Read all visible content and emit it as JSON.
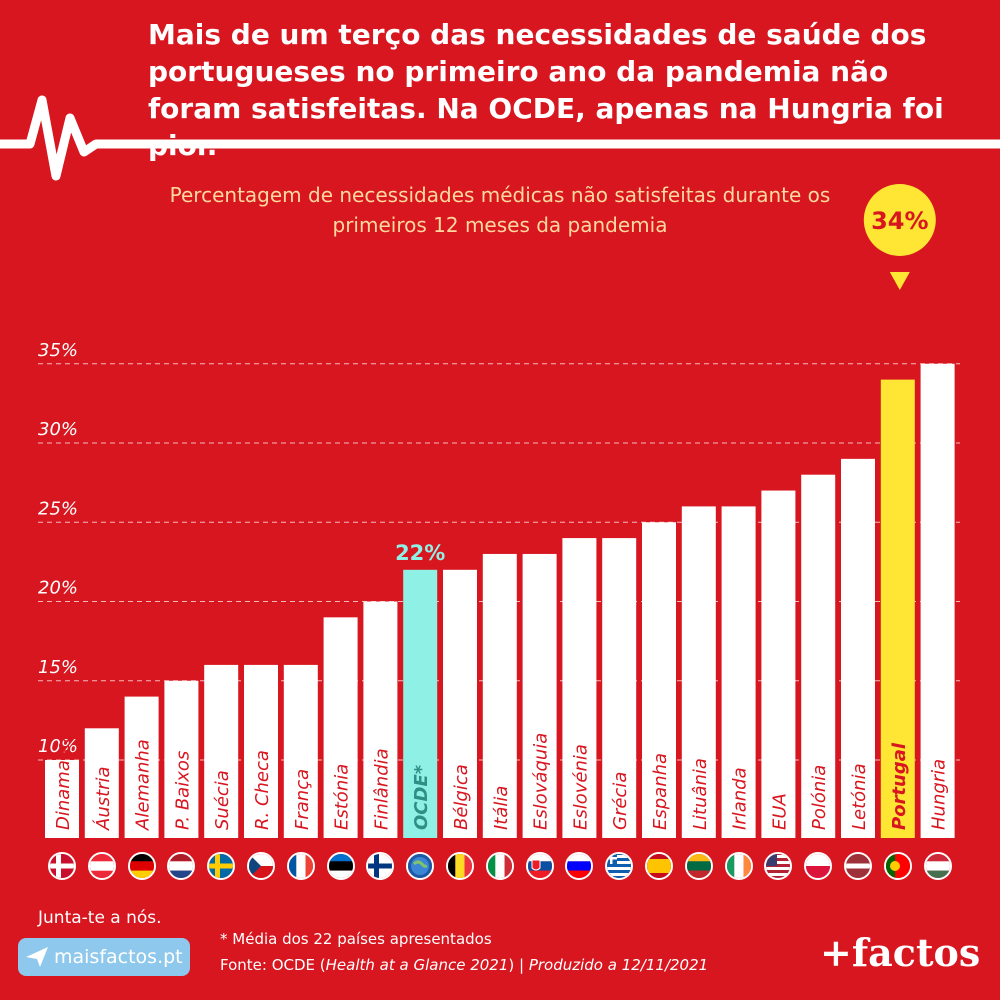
{
  "headline": "Mais de um terço das necessidades de saúde dos portugueses no primeiro ano da pandemia não foram satisfeitas. Na OCDE, apenas na Hungria foi pior.",
  "chart_data": {
    "type": "bar",
    "title": "Percentagem de necessidades médicas não satisfeitas durante os primeiros 12 meses da pandemia",
    "categories": [
      "Dinamarca",
      "Áustria",
      "Alemanha",
      "P. Baixos",
      "Suécia",
      "R. Checa",
      "França",
      "Estónia",
      "Finlândia",
      "OCDE*",
      "Bélgica",
      "Itália",
      "Eslováquia",
      "Eslovénia",
      "Grécia",
      "Espanha",
      "Lituânia",
      "Irlanda",
      "EUA",
      "Polónia",
      "Letónia",
      "Portugal",
      "Hungria"
    ],
    "values": [
      10,
      12,
      14,
      15,
      16,
      16,
      16,
      19,
      20,
      22,
      22,
      23,
      23,
      24,
      24,
      25,
      26,
      26,
      27,
      28,
      29,
      34,
      35
    ],
    "y_ticks": [
      "10%",
      "15%",
      "20%",
      "25%",
      "30%",
      "35%"
    ],
    "ylim": [
      5,
      35
    ],
    "grid": "dashed horizontal",
    "annotations": [
      {
        "category": "OCDE*",
        "label": "22%"
      },
      {
        "category": "Portugal",
        "label": "34%"
      }
    ],
    "colors": {
      "default": "#ffffff",
      "OCDE*": "#8ff0e6",
      "Portugal": "#ffe534"
    }
  },
  "flags": [
    {
      "country": "Dinamarca",
      "icon": "denmark-flag-icon"
    },
    {
      "country": "Áustria",
      "icon": "austria-flag-icon"
    },
    {
      "country": "Alemanha",
      "icon": "germany-flag-icon"
    },
    {
      "country": "P. Baixos",
      "icon": "netherlands-flag-icon"
    },
    {
      "country": "Suécia",
      "icon": "sweden-flag-icon"
    },
    {
      "country": "R. Checa",
      "icon": "czech-flag-icon"
    },
    {
      "country": "França",
      "icon": "france-flag-icon"
    },
    {
      "country": "Estónia",
      "icon": "estonia-flag-icon"
    },
    {
      "country": "Finlândia",
      "icon": "finland-flag-icon"
    },
    {
      "country": "OCDE*",
      "icon": "oecd-globe-icon"
    },
    {
      "country": "Bélgica",
      "icon": "belgium-flag-icon"
    },
    {
      "country": "Itália",
      "icon": "italy-flag-icon"
    },
    {
      "country": "Eslováquia",
      "icon": "slovakia-flag-icon"
    },
    {
      "country": "Eslovénia",
      "icon": "slovenia-flag-icon"
    },
    {
      "country": "Grécia",
      "icon": "greece-flag-icon"
    },
    {
      "country": "Espanha",
      "icon": "spain-flag-icon"
    },
    {
      "country": "Lituânia",
      "icon": "lithuania-flag-icon"
    },
    {
      "country": "Irlanda",
      "icon": "ireland-flag-icon"
    },
    {
      "country": "EUA",
      "icon": "usa-flag-icon"
    },
    {
      "country": "Polónia",
      "icon": "poland-flag-icon"
    },
    {
      "country": "Letónia",
      "icon": "latvia-flag-icon"
    },
    {
      "country": "Portugal",
      "icon": "portugal-flag-icon"
    },
    {
      "country": "Hungria",
      "icon": "hungary-flag-icon"
    }
  ],
  "footer": {
    "cta": "Junta-te a nós.",
    "site": "maisfactos.pt",
    "note": "* Média dos 22 países apresentados",
    "source_prefix": "Fonte: OCDE (",
    "source_italic": "Health at a Glance 2021",
    "source_mid": ") | ",
    "source_produced": "Produzido a 12/11/2021",
    "brand": "+factos"
  },
  "colors": {
    "background": "#d8161f",
    "subtitle": "#ffd99e"
  }
}
